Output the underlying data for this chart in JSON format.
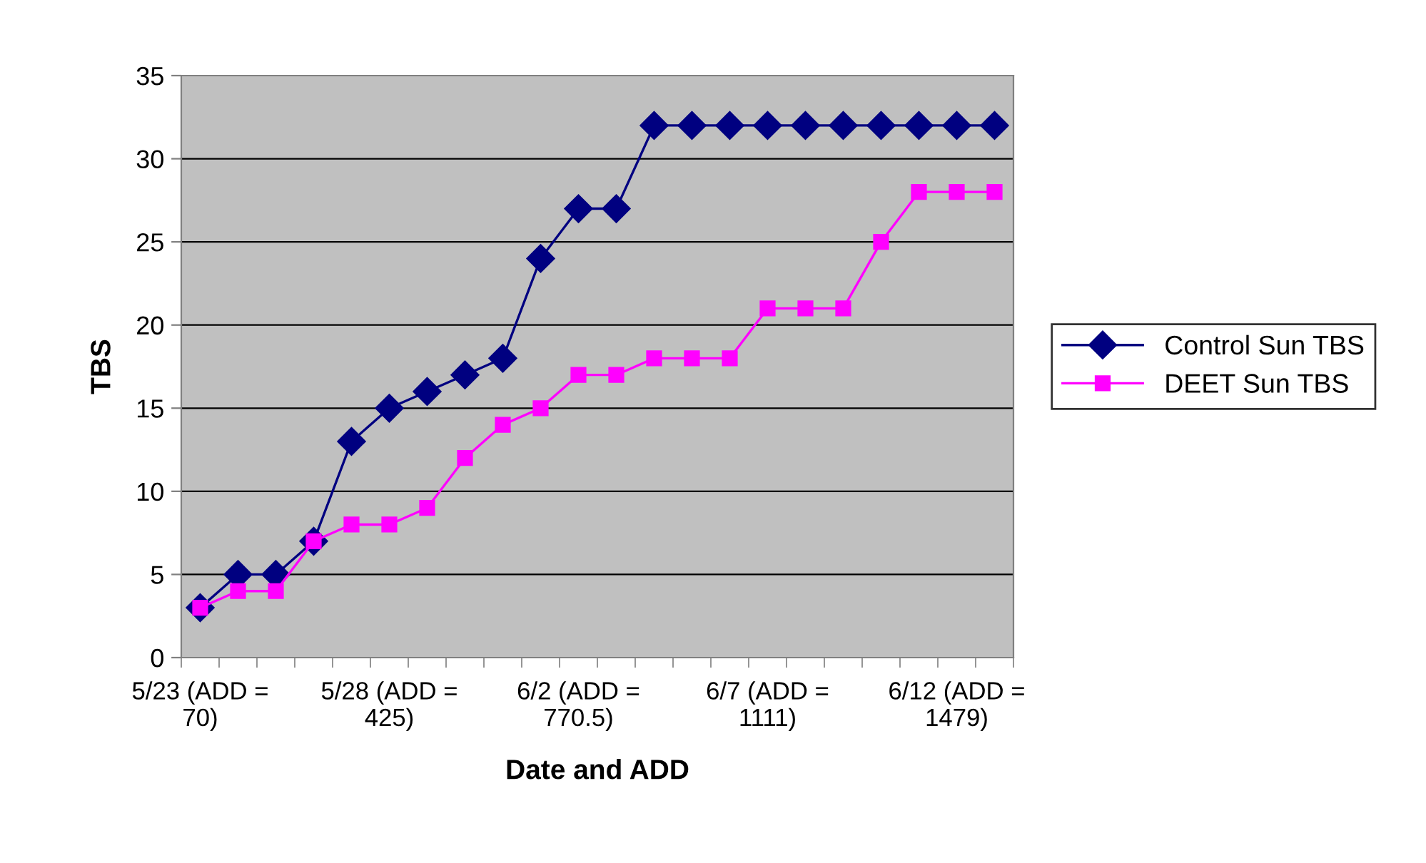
{
  "chart_data": {
    "type": "line",
    "xlabel": "Date and ADD",
    "ylabel": "TBS",
    "categories": [
      "5/23 (ADD = 70)",
      null,
      null,
      null,
      null,
      "5/28 (ADD = 425)",
      null,
      null,
      null,
      null,
      "6/2 (ADD = 770.5)",
      null,
      null,
      null,
      null,
      "6/7 (ADD = 1111)",
      null,
      null,
      null,
      null,
      "6/12 (ADD = 1479)",
      null
    ],
    "series": [
      {
        "name": "Control Sun TBS",
        "color": "#000080",
        "marker": "diamond",
        "values": [
          3,
          5,
          5,
          7,
          13,
          15,
          16,
          17,
          18,
          24,
          27,
          27,
          32,
          32,
          32,
          32,
          32,
          32,
          32,
          32,
          32,
          32
        ]
      },
      {
        "name": "DEET Sun TBS",
        "color": "#ff00ff",
        "marker": "square",
        "values": [
          3,
          4,
          4,
          7,
          8,
          8,
          9,
          12,
          14,
          15,
          17,
          17,
          18,
          18,
          18,
          21,
          21,
          21,
          25,
          28,
          28,
          28
        ]
      }
    ],
    "ylim": [
      0,
      35
    ],
    "yticks": [
      0,
      5,
      10,
      15,
      20,
      25,
      30,
      35
    ],
    "grid": "y",
    "legend": "right",
    "line_style": "solid"
  }
}
